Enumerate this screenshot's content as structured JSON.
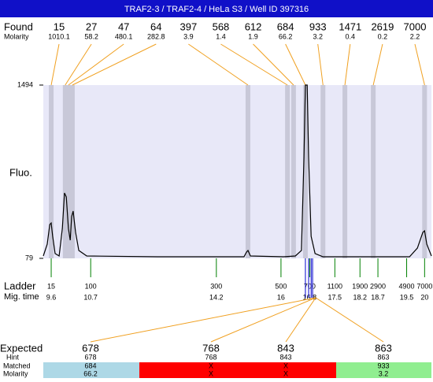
{
  "title": "TRAF2-3 / TRAF2-4 / HeLa S3 / Well ID 397316",
  "found": {
    "label": "Found",
    "molarity_label": "Molarity",
    "sizes": [
      15,
      27,
      47,
      64,
      397,
      568,
      612,
      684,
      933,
      1471,
      2619,
      7000
    ],
    "molarity": [
      1010.1,
      58.2,
      480.1,
      282.8,
      3.9,
      1.4,
      1.9,
      66.2,
      3.2,
      0.4,
      0.2,
      2.2
    ],
    "times": [
      9.6,
      9.99,
      10.08,
      10.19,
      15.08,
      16.18,
      16.35,
      16.68,
      17.17,
      17.78,
      18.57,
      20.0
    ]
  },
  "chart_data": {
    "type": "line",
    "y_label": "Fluo.",
    "color": "#000000",
    "xlim": [
      9.38,
      20.19
    ],
    "ylim": [
      79,
      1494
    ],
    "yticks": [
      79,
      1494
    ],
    "x": [
      9.38,
      9.49,
      9.56,
      9.6,
      9.64,
      9.71,
      9.82,
      9.91,
      9.97,
      10.02,
      10.08,
      10.13,
      10.17,
      10.21,
      10.28,
      10.37,
      10.59,
      12.56,
      14.97,
      15.04,
      15.08,
      15.15,
      16.07,
      16.4,
      16.57,
      16.64,
      16.68,
      16.73,
      16.77,
      16.84,
      16.95,
      17.17,
      19.58,
      19.8,
      19.95,
      20.0,
      20.06,
      20.19
    ],
    "values": [
      98,
      195,
      355,
      368,
      259,
      118,
      98,
      323,
      613,
      581,
      323,
      227,
      420,
      465,
      291,
      143,
      98,
      92,
      92,
      130,
      143,
      98,
      92,
      98,
      143,
      902,
      1494,
      1494,
      902,
      259,
      118,
      92,
      92,
      163,
      291,
      304,
      195,
      98
    ]
  },
  "ladder": {
    "label": "Ladder",
    "time_label": "Mig. time",
    "sizes": [
      15,
      100,
      300,
      500,
      700,
      1100,
      1900,
      2900,
      4900,
      7000
    ],
    "times": [
      9.6,
      10.7,
      14.2,
      16,
      16.8,
      17.5,
      18.2,
      18.7,
      19.5,
      20
    ]
  },
  "expected": {
    "label": "Expected",
    "hint_label": "Hint",
    "matched_label": "Matched",
    "molarity_label": "Molarity",
    "sizes": [
      678,
      768,
      843,
      863
    ],
    "hints": [
      678,
      768,
      843,
      863
    ],
    "matched": [
      684,
      "X",
      "X",
      933
    ],
    "molarity": [
      66.2,
      "X",
      "X",
      3.2
    ],
    "times": [
      16.68,
      16.77,
      16.84,
      16.88
    ],
    "colors": [
      "#add8e6",
      "#ff0000",
      "#ff0000",
      "#90ee90"
    ]
  }
}
